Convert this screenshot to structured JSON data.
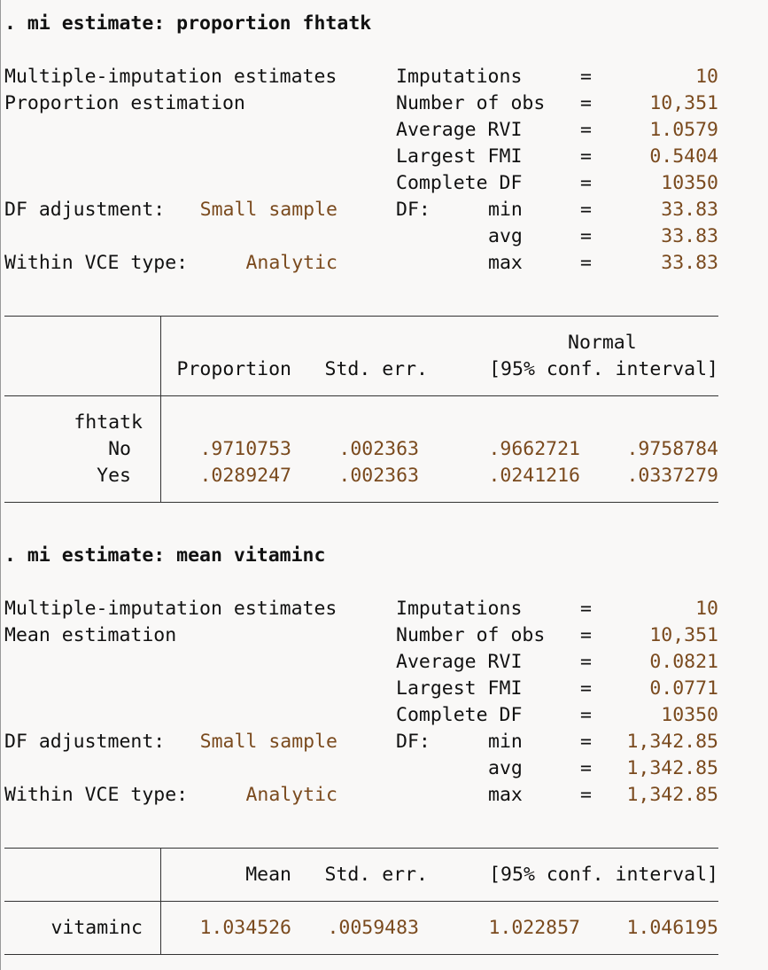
{
  "blocks": [
    {
      "command": ". mi estimate: proportion fhtatk",
      "header_left": [
        "Multiple-imputation estimates",
        "Proportion estimation"
      ],
      "df_adjustment_label": "DF adjustment:",
      "df_adjustment_value": "Small sample",
      "vce_label": "Within VCE type:",
      "vce_value": "Analytic",
      "stats": [
        {
          "label": "Imputations",
          "eq": "=",
          "value": "10"
        },
        {
          "label": "Number of obs",
          "eq": "=",
          "value": "10,351"
        },
        {
          "label": "Average RVI",
          "eq": "=",
          "value": "1.0579"
        },
        {
          "label": "Largest FMI",
          "eq": "=",
          "value": "0.5404"
        },
        {
          "label": "Complete DF",
          "eq": "=",
          "value": "10350"
        },
        {
          "label": "DF:",
          "sub": "min",
          "eq": "=",
          "value": "33.83"
        },
        {
          "label": "",
          "sub": "avg",
          "eq": "=",
          "value": "33.83"
        },
        {
          "label": "",
          "sub": "max",
          "eq": "=",
          "value": "33.83"
        }
      ],
      "table": {
        "header_top": "Normal",
        "headers": [
          "Proportion",
          "Std. err.",
          "[95% conf. interval]"
        ],
        "group": "fhtatk",
        "rows": [
          {
            "label": "No",
            "c1": ".9710753",
            "c2": ".002363",
            "c3": ".9662721",
            "c4": ".9758784"
          },
          {
            "label": "Yes",
            "c1": ".0289247",
            "c2": ".002363",
            "c3": ".0241216",
            "c4": ".0337279"
          }
        ]
      }
    },
    {
      "command": ". mi estimate: mean vitaminc",
      "header_left": [
        "Multiple-imputation estimates",
        "Mean estimation"
      ],
      "df_adjustment_label": "DF adjustment:",
      "df_adjustment_value": "Small sample",
      "vce_label": "Within VCE type:",
      "vce_value": "Analytic",
      "stats": [
        {
          "label": "Imputations",
          "eq": "=",
          "value": "10"
        },
        {
          "label": "Number of obs",
          "eq": "=",
          "value": "10,351"
        },
        {
          "label": "Average RVI",
          "eq": "=",
          "value": "0.0821"
        },
        {
          "label": "Largest FMI",
          "eq": "=",
          "value": "0.0771"
        },
        {
          "label": "Complete DF",
          "eq": "=",
          "value": "10350"
        },
        {
          "label": "DF:",
          "sub": "min",
          "eq": "=",
          "value": "1,342.85"
        },
        {
          "label": "",
          "sub": "avg",
          "eq": "=",
          "value": "1,342.85"
        },
        {
          "label": "",
          "sub": "max",
          "eq": "=",
          "value": "1,342.85"
        }
      ],
      "table": {
        "headers": [
          "Mean",
          "Std. err.",
          "[95% conf. interval]"
        ],
        "rows": [
          {
            "label": "vitaminc",
            "c1": "1.034526",
            "c2": ".0059483",
            "c3": "1.022857",
            "c4": "1.046195"
          }
        ]
      }
    }
  ]
}
